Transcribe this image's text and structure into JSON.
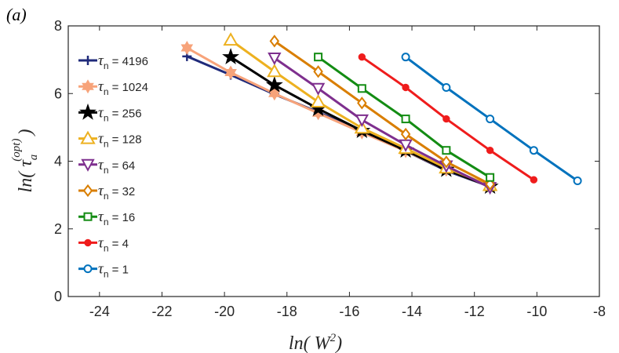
{
  "chart_data": {
    "type": "line",
    "panel_label": "(a)",
    "xlabel_main": "ln( W",
    "xlabel_sup": "2",
    "xlabel_close": ")",
    "ylabel_main": "ln( τ",
    "ylabel_sub": "a",
    "ylabel_sup": "(opt)",
    "ylabel_close": ")",
    "xlim": [
      -25,
      -8
    ],
    "ylim": [
      0,
      8
    ],
    "xticks": [
      -24,
      -22,
      -20,
      -18,
      -16,
      -14,
      -12,
      -10,
      -8
    ],
    "yticks": [
      0,
      2,
      4,
      6,
      8
    ],
    "legend_position": "top-left",
    "series": [
      {
        "name": "τn = 4196",
        "tau": "τ",
        "sub": "n",
        "value_text": " = 4196",
        "color": "#1f2a7a",
        "marker": "plus",
        "x": [
          -21.2,
          -19.8,
          -18.4,
          -17.0,
          -15.6,
          -14.2,
          -12.9,
          -11.5
        ],
        "y": [
          7.1,
          6.55,
          5.98,
          5.45,
          4.88,
          4.3,
          3.72,
          3.25
        ]
      },
      {
        "name": "τn = 1024",
        "tau": "τ",
        "sub": "n",
        "value_text": " = 1024",
        "color": "#f7a37a",
        "marker": "hexagram",
        "x": [
          -21.2,
          -19.8,
          -18.4,
          -17.0,
          -15.6,
          -14.2,
          -12.9,
          -11.5
        ],
        "y": [
          7.35,
          6.62,
          6.0,
          5.42,
          4.85,
          4.3,
          3.75,
          3.25
        ]
      },
      {
        "name": "τn = 256",
        "tau": "τ",
        "sub": "n",
        "value_text": " = 256",
        "color": "#000000",
        "marker": "star",
        "x": [
          -19.8,
          -18.4,
          -17.0,
          -15.6,
          -14.2,
          -12.9,
          -11.5
        ],
        "y": [
          7.08,
          6.25,
          5.55,
          4.9,
          4.32,
          3.75,
          3.25
        ]
      },
      {
        "name": "τn = 128",
        "tau": "τ",
        "sub": "n",
        "value_text": " = 128",
        "color": "#edb120",
        "marker": "triangle-up",
        "x": [
          -19.8,
          -18.4,
          -17.0,
          -15.6,
          -14.2,
          -12.9,
          -11.5
        ],
        "y": [
          7.58,
          6.65,
          5.75,
          4.98,
          4.38,
          3.8,
          3.28
        ]
      },
      {
        "name": "τn = 64",
        "tau": "τ",
        "sub": "n",
        "value_text": " = 64",
        "color": "#7e2f8e",
        "marker": "triangle-down",
        "x": [
          -18.4,
          -17.0,
          -15.6,
          -14.2,
          -12.9,
          -11.5
        ],
        "y": [
          7.05,
          6.15,
          5.22,
          4.48,
          3.86,
          3.22
        ]
      },
      {
        "name": "τn = 32",
        "tau": "τ",
        "sub": "n",
        "value_text": " = 32",
        "color": "#d97e00",
        "marker": "diamond",
        "x": [
          -18.4,
          -17.0,
          -15.6,
          -14.2,
          -12.9,
          -11.5
        ],
        "y": [
          7.55,
          6.65,
          5.72,
          4.8,
          3.98,
          3.32
        ]
      },
      {
        "name": "τn = 16",
        "tau": "τ",
        "sub": "n",
        "value_text": " = 16",
        "color": "#138c13",
        "marker": "square",
        "x": [
          -17.0,
          -15.6,
          -14.2,
          -12.9,
          -11.5
        ],
        "y": [
          7.08,
          6.15,
          5.25,
          4.32,
          3.52
        ]
      },
      {
        "name": "τn = 4",
        "tau": "τ",
        "sub": "n",
        "value_text": " = 4",
        "color": "#ef1c1c",
        "marker": "dot",
        "x": [
          -15.6,
          -14.2,
          -12.9,
          -11.5,
          -10.1
        ],
        "y": [
          7.08,
          6.18,
          5.25,
          4.32,
          3.45
        ]
      },
      {
        "name": "τn = 1",
        "tau": "τ",
        "sub": "n",
        "value_text": " = 1",
        "color": "#0072bd",
        "marker": "circle",
        "x": [
          -14.2,
          -12.9,
          -11.5,
          -10.1,
          -8.7
        ],
        "y": [
          7.08,
          6.18,
          5.25,
          4.32,
          3.42
        ]
      }
    ]
  }
}
